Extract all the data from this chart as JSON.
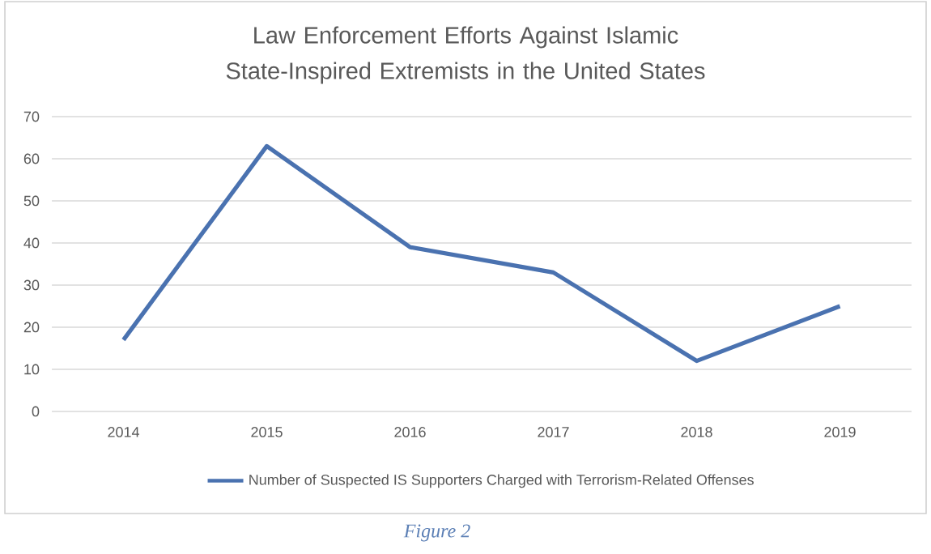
{
  "chart_data": {
    "type": "line",
    "title": "Law Enforcement Efforts Against Islamic State-Inspired Extremists in the United States",
    "categories": [
      "2014",
      "2015",
      "2016",
      "2017",
      "2018",
      "2019"
    ],
    "series": [
      {
        "name": "Number of Suspected IS Supporters Charged with Terrorism-Related Offenses",
        "color": "#4a72b0",
        "values": [
          17,
          63,
          39,
          33,
          12,
          25
        ]
      }
    ],
    "ylim": [
      0,
      70
    ],
    "yticks": [
      0,
      10,
      20,
      30,
      40,
      50,
      60,
      70
    ],
    "grid": "y",
    "legend": "bottom",
    "marker": "none",
    "line_style": "solid",
    "annotations": [
      "Figure 2"
    ]
  }
}
